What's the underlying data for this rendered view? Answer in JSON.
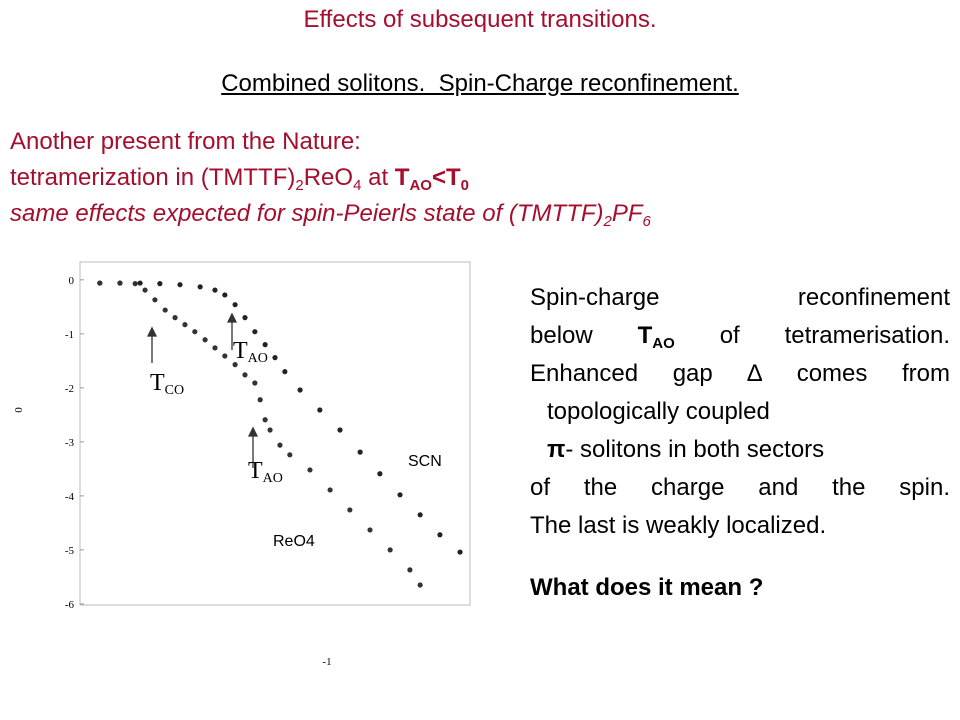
{
  "slide": {
    "title": "Effects of subsequent transitions.",
    "subtitle": "Combined solitons.  Spin-Charge reconfinement.",
    "intro": [
      [
        "Another present from the Nature:"
      ],
      [
        "tetramerization in (TMTTF)",
        "2",
        "ReO",
        "4",
        " at ",
        "T",
        "AO",
        "<T",
        "0"
      ],
      [
        "same effects expected for spin-Peierls state of (TMTTF)",
        "2",
        "PF",
        "6"
      ]
    ],
    "right_text": [
      [
        "Spin-charge",
        "reconfinement"
      ],
      [
        "below",
        "T",
        "AO",
        "of tetramerisation."
      ],
      [
        "Enhanced gap",
        "∆",
        "comes from"
      ],
      [
        "topologically coupled"
      ],
      [
        "π",
        "- solitons in both sectors"
      ],
      [
        "of the charge and the spin."
      ],
      [
        "The last is weakly localized."
      ],
      [
        "What does it mean ?"
      ]
    ]
  },
  "chart_data": {
    "type": "scatter",
    "x_label": "-1",
    "y_label": "0",
    "xlim": [
      0,
      10
    ],
    "ylim": [
      -6.02,
      0.33
    ],
    "yticks": [
      0,
      -1,
      -2,
      -3,
      -4,
      -5,
      -6
    ],
    "series": [
      {
        "name": "SCN",
        "color": "#222222",
        "x": [
          0.39,
          0.92,
          1.45,
          1.97,
          2.5,
          3.03,
          3.42,
          3.68,
          3.95,
          4.21,
          4.47,
          4.74,
          5,
          5.26,
          5.66,
          6.18,
          6.71,
          7.24,
          7.76,
          8.29,
          8.82,
          9.34,
          9.87
        ],
        "values": [
          -0.06,
          -0.06,
          -0.06,
          -0.07,
          -0.09,
          -0.13,
          -0.19,
          -0.28,
          -0.46,
          -0.7,
          -0.96,
          -1.2,
          -1.44,
          -1.7,
          -2.04,
          -2.41,
          -2.78,
          -3.19,
          -3.59,
          -3.98,
          -4.35,
          -4.72,
          -5.04
        ]
      },
      {
        "name": "ReO4",
        "color": "#333333",
        "x": [
          0.39,
          0.92,
          1.32,
          1.58,
          1.84,
          2.11,
          2.37,
          2.63,
          2.89,
          3.16,
          3.42,
          3.68,
          3.95,
          4.21,
          4.47,
          4.61,
          4.74,
          4.87,
          5.13,
          5.39,
          5.92,
          6.45,
          6.97,
          7.5,
          8.03,
          8.55,
          8.82
        ],
        "values": [
          -0.06,
          -0.06,
          -0.07,
          -0.19,
          -0.37,
          -0.56,
          -0.7,
          -0.83,
          -0.96,
          -1.11,
          -1.26,
          -1.41,
          -1.57,
          -1.76,
          -1.91,
          -2.22,
          -2.59,
          -2.78,
          -3.06,
          -3.24,
          -3.52,
          -3.89,
          -4.26,
          -4.63,
          -5,
          -5.37,
          -5.65
        ]
      }
    ],
    "annotations": [
      [
        "T",
        "CO"
      ],
      [
        "T",
        "AO"
      ],
      [
        "T",
        "AO"
      ]
    ]
  }
}
